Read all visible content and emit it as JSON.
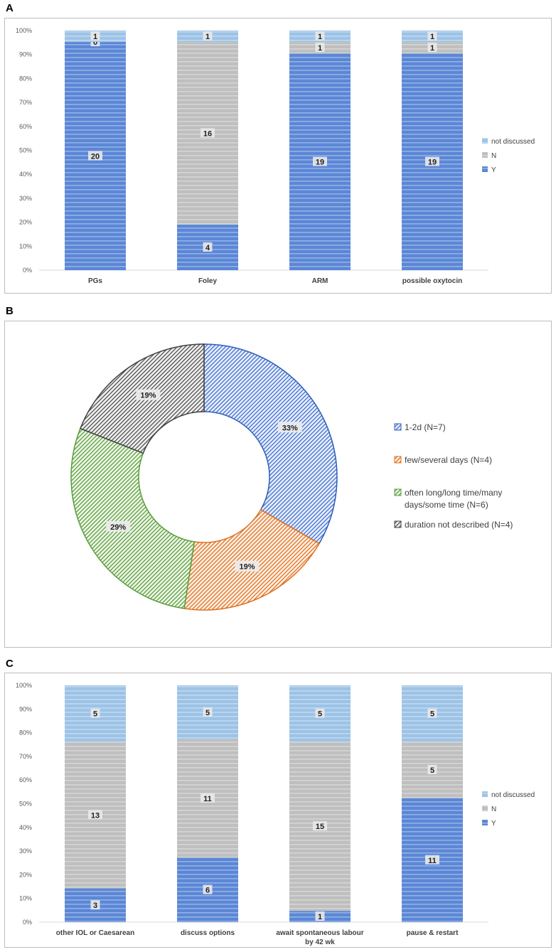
{
  "panels": [
    {
      "letter": "A"
    },
    {
      "letter": "B"
    },
    {
      "letter": "C"
    }
  ],
  "colors": {
    "not_discussed": "#9dc3e6",
    "N": "#bfbfbf",
    "Y": "#5b87d6",
    "stripe": "#ffffff",
    "pie": [
      "#2e5db8",
      "#e07020",
      "#5a9e3a",
      "#404040"
    ]
  },
  "chart_data": [
    {
      "type": "bar",
      "stacked": true,
      "percent": true,
      "categories": [
        "PGs",
        "Foley",
        "ARM",
        "possible oxytocin"
      ],
      "series": [
        {
          "name": "Y",
          "values": [
            20,
            4,
            19,
            19
          ]
        },
        {
          "name": "N",
          "values": [
            0,
            16,
            1,
            1
          ]
        },
        {
          "name": "not discussed",
          "values": [
            1,
            1,
            1,
            1
          ]
        }
      ],
      "yticks": [
        "0%",
        "10%",
        "20%",
        "30%",
        "40%",
        "50%",
        "60%",
        "70%",
        "80%",
        "90%",
        "100%"
      ],
      "legend": [
        "not discussed",
        "N",
        "Y"
      ],
      "ylim": [
        0,
        100
      ]
    },
    {
      "type": "pie",
      "donut": true,
      "labels": [
        "1-2d (N=7)",
        "few/several days (N=4)",
        "often long/long time/many days/some time (N=6)",
        "duration not described (N=4)"
      ],
      "values": [
        7,
        4,
        6,
        4
      ],
      "percent_labels": [
        "33%",
        "19%",
        "29%",
        "19%"
      ],
      "legend_lines": [
        [
          "1-2d (N=7)"
        ],
        [
          "few/several days (N=4)"
        ],
        [
          "often long/long time/many",
          "days/some time (N=6)"
        ],
        [
          "duration not described (N=4)"
        ]
      ]
    },
    {
      "type": "bar",
      "stacked": true,
      "percent": true,
      "categories": [
        [
          "other IOL or Caesarean"
        ],
        [
          "discuss options"
        ],
        [
          "await spontaneous labour",
          "by 42 wk"
        ],
        [
          "pause & restart"
        ]
      ],
      "series": [
        {
          "name": "Y",
          "values": [
            3,
            6,
            1,
            11
          ]
        },
        {
          "name": "N",
          "values": [
            13,
            11,
            15,
            5
          ]
        },
        {
          "name": "not discussed",
          "values": [
            5,
            5,
            5,
            5
          ]
        }
      ],
      "yticks": [
        "0%",
        "10%",
        "20%",
        "30%",
        "40%",
        "50%",
        "60%",
        "70%",
        "80%",
        "90%",
        "100%"
      ],
      "legend": [
        "not discussed",
        "N",
        "Y"
      ],
      "ylim": [
        0,
        100
      ]
    }
  ]
}
